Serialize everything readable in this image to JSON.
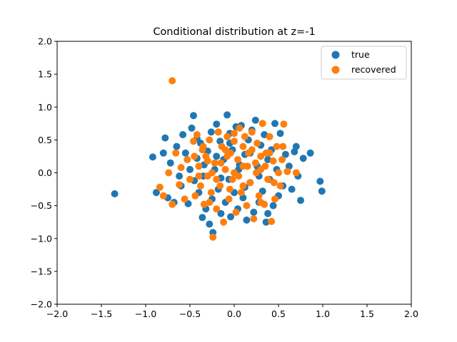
{
  "chart_data": {
    "type": "scatter",
    "title": "Conditional distribution at z=-1",
    "xlabel": "",
    "ylabel": "",
    "xlim": [
      -2.0,
      2.0
    ],
    "ylim": [
      -2.0,
      2.0
    ],
    "xticks": [
      -2.0,
      -1.5,
      -1.0,
      -0.5,
      0.0,
      0.5,
      1.0,
      1.5,
      2.0
    ],
    "yticks": [
      -2.0,
      -1.5,
      -1.0,
      -0.5,
      0.0,
      0.5,
      1.0,
      1.5,
      2.0
    ],
    "xtick_labels": [
      "−2.0",
      "−1.5",
      "−1.0",
      "−0.5",
      "0.0",
      "0.5",
      "1.0",
      "1.5",
      "2.0"
    ],
    "ytick_labels": [
      "−2.0",
      "−1.5",
      "−1.0",
      "−0.5",
      "0.0",
      "0.5",
      "1.0",
      "1.5",
      "2.0"
    ],
    "legend_position": "top-right",
    "grid": false,
    "series": [
      {
        "name": "true",
        "color": "#1f77b4",
        "points": [
          [
            -1.35,
            -0.32
          ],
          [
            -0.92,
            0.24
          ],
          [
            -0.88,
            -0.3
          ],
          [
            -0.8,
            0.3
          ],
          [
            -0.78,
            0.53
          ],
          [
            -0.75,
            -0.38
          ],
          [
            -0.72,
            0.15
          ],
          [
            -0.68,
            -0.45
          ],
          [
            -0.65,
            0.4
          ],
          [
            -0.6,
            -0.2
          ],
          [
            -0.58,
            0.58
          ],
          [
            -0.55,
            0.3
          ],
          [
            -0.52,
            -0.47
          ],
          [
            -0.5,
            0.05
          ],
          [
            -0.48,
            0.68
          ],
          [
            -0.46,
            0.87
          ],
          [
            -0.45,
            -0.12
          ],
          [
            -0.42,
            0.22
          ],
          [
            -0.4,
            -0.3
          ],
          [
            -0.38,
            0.45
          ],
          [
            -0.36,
            -0.68
          ],
          [
            -0.34,
            0.12
          ],
          [
            -0.32,
            -0.55
          ],
          [
            -0.3,
            0.33
          ],
          [
            -0.28,
            -0.78
          ],
          [
            -0.26,
            0.62
          ],
          [
            -0.25,
            -0.4
          ],
          [
            -0.24,
            -0.91
          ],
          [
            -0.22,
            0.05
          ],
          [
            -0.2,
            0.74
          ],
          [
            -0.18,
            -0.25
          ],
          [
            -0.16,
            0.48
          ],
          [
            -0.15,
            -0.62
          ],
          [
            -0.12,
            0.2
          ],
          [
            -0.1,
            -0.45
          ],
          [
            -0.08,
            0.88
          ],
          [
            -0.06,
            -0.1
          ],
          [
            -0.05,
            0.6
          ],
          [
            -0.04,
            -0.67
          ],
          [
            -0.02,
            0.35
          ],
          [
            0.0,
            -0.3
          ],
          [
            0.02,
            0.7
          ],
          [
            0.04,
            -0.55
          ],
          [
            0.06,
            0.12
          ],
          [
            0.08,
            0.72
          ],
          [
            0.1,
            -0.38
          ],
          [
            0.12,
            0.28
          ],
          [
            0.14,
            -0.72
          ],
          [
            0.16,
            0.5
          ],
          [
            0.18,
            -0.15
          ],
          [
            0.2,
            0.65
          ],
          [
            0.22,
            -0.6
          ],
          [
            0.24,
            0.8
          ],
          [
            0.26,
            0.1
          ],
          [
            0.28,
            -0.45
          ],
          [
            0.3,
            0.42
          ],
          [
            0.32,
            -0.28
          ],
          [
            0.34,
            0.58
          ],
          [
            0.36,
            -0.75
          ],
          [
            0.38,
            0.2
          ],
          [
            0.4,
            -0.1
          ],
          [
            0.42,
            0.35
          ],
          [
            0.44,
            -0.5
          ],
          [
            0.46,
            0.75
          ],
          [
            0.48,
            0.05
          ],
          [
            0.5,
            -0.35
          ],
          [
            0.52,
            0.6
          ],
          [
            0.55,
            -0.2
          ],
          [
            0.58,
            0.28
          ],
          [
            0.62,
            0.1
          ],
          [
            0.65,
            -0.25
          ],
          [
            0.68,
            0.32
          ],
          [
            0.7,
            0.4
          ],
          [
            0.72,
            -0.05
          ],
          [
            0.75,
            -0.42
          ],
          [
            0.78,
            0.22
          ],
          [
            0.86,
            0.3
          ],
          [
            0.97,
            -0.13
          ],
          [
            0.99,
            -0.28
          ],
          [
            -0.62,
            -0.05
          ],
          [
            -0.15,
            -0.08
          ],
          [
            0.05,
            0.05
          ],
          [
            -0.2,
            0.25
          ],
          [
            0.18,
            0.3
          ],
          [
            -0.35,
            -0.05
          ],
          [
            0.28,
            -0.05
          ],
          [
            -0.05,
            0.45
          ],
          [
            0.12,
            -0.22
          ],
          [
            -0.42,
            0.52
          ],
          [
            0.38,
            -0.62
          ]
        ]
      },
      {
        "name": "recovered",
        "color": "#ff7f0e",
        "points": [
          [
            -0.7,
            1.4
          ],
          [
            -0.84,
            -0.22
          ],
          [
            -0.8,
            -0.35
          ],
          [
            -0.74,
            0.0
          ],
          [
            -0.7,
            -0.48
          ],
          [
            -0.66,
            0.3
          ],
          [
            -0.62,
            -0.18
          ],
          [
            -0.6,
            0.08
          ],
          [
            -0.56,
            -0.4
          ],
          [
            -0.53,
            0.2
          ],
          [
            -0.5,
            -0.1
          ],
          [
            -0.46,
            0.48
          ],
          [
            -0.44,
            -0.35
          ],
          [
            -0.42,
            0.58
          ],
          [
            -0.4,
            0.1
          ],
          [
            -0.38,
            -0.2
          ],
          [
            -0.36,
            0.35
          ],
          [
            -0.34,
            -0.48
          ],
          [
            -0.32,
            0.25
          ],
          [
            -0.3,
            -0.05
          ],
          [
            -0.28,
            0.5
          ],
          [
            -0.26,
            -0.3
          ],
          [
            -0.24,
            -0.98
          ],
          [
            -0.22,
            0.15
          ],
          [
            -0.2,
            -0.55
          ],
          [
            -0.18,
            0.62
          ],
          [
            -0.16,
            -0.2
          ],
          [
            -0.14,
            0.4
          ],
          [
            -0.12,
            -0.75
          ],
          [
            -0.1,
            0.05
          ],
          [
            -0.08,
            0.55
          ],
          [
            -0.06,
            -0.4
          ],
          [
            -0.04,
            0.3
          ],
          [
            -0.02,
            -0.1
          ],
          [
            0.0,
            0.48
          ],
          [
            0.02,
            -0.6
          ],
          [
            0.04,
            0.2
          ],
          [
            0.06,
            0.68
          ],
          [
            0.08,
            -0.3
          ],
          [
            0.1,
            0.1
          ],
          [
            0.12,
            0.55
          ],
          [
            0.14,
            -0.5
          ],
          [
            0.16,
            0.3
          ],
          [
            0.18,
            -0.15
          ],
          [
            0.2,
            0.62
          ],
          [
            0.22,
            -0.7
          ],
          [
            0.24,
            0.15
          ],
          [
            0.26,
            0.45
          ],
          [
            0.28,
            -0.35
          ],
          [
            0.3,
            0.05
          ],
          [
            0.32,
            0.75
          ],
          [
            0.34,
            -0.48
          ],
          [
            0.36,
            0.3
          ],
          [
            0.38,
            -0.1
          ],
          [
            0.4,
            0.55
          ],
          [
            0.42,
            -0.74
          ],
          [
            0.44,
            0.18
          ],
          [
            0.46,
            -0.4
          ],
          [
            0.48,
            0.4
          ],
          [
            0.5,
            0.0
          ],
          [
            0.52,
            -0.2
          ],
          [
            0.54,
            0.2
          ],
          [
            0.56,
            0.74
          ],
          [
            0.6,
            0.02
          ],
          [
            0.7,
            0.0
          ],
          [
            -0.08,
            0.25
          ],
          [
            0.05,
            -0.05
          ],
          [
            -0.25,
            0.0
          ],
          [
            0.15,
            0.1
          ],
          [
            -0.15,
            0.15
          ],
          [
            0.0,
            0.0
          ],
          [
            0.2,
            0.35
          ],
          [
            -0.3,
            0.18
          ],
          [
            0.1,
            -0.2
          ],
          [
            -0.05,
            -0.25
          ],
          [
            0.25,
            0.0
          ],
          [
            -0.2,
            -0.1
          ],
          [
            0.35,
            0.1
          ],
          [
            -0.4,
            -0.05
          ],
          [
            0.45,
            -0.15
          ],
          [
            -0.1,
            0.35
          ],
          [
            0.3,
            0.25
          ],
          [
            -0.35,
            0.4
          ],
          [
            0.4,
            0.3
          ],
          [
            0.0,
            0.6
          ],
          [
            -0.28,
            -0.45
          ],
          [
            0.3,
            -0.45
          ],
          [
            0.1,
            0.4
          ],
          [
            -0.45,
            0.25
          ],
          [
            0.55,
            0.4
          ]
        ]
      }
    ]
  }
}
